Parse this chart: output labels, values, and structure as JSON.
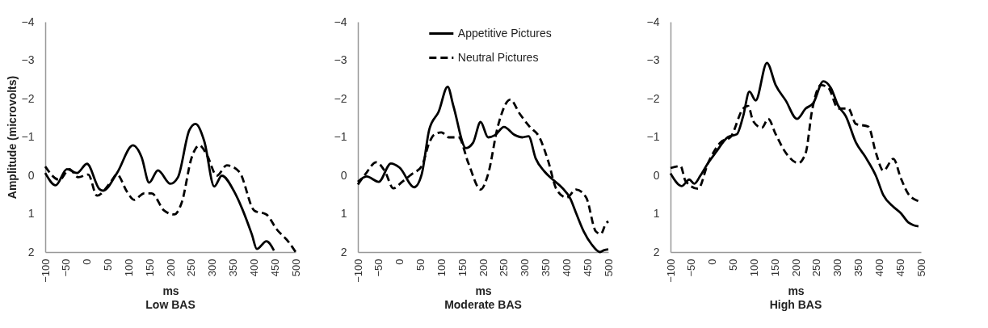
{
  "chart_data": [
    {
      "type": "line",
      "title": "Low BAS",
      "xlabel": "ms",
      "ylabel": "Amplitude (microvolts)",
      "xlim": [
        -100,
        500
      ],
      "xticks": [
        -100,
        -50,
        0,
        50,
        100,
        150,
        200,
        250,
        300,
        350,
        400,
        450,
        500
      ],
      "ylim": [
        2,
        -4
      ],
      "yticks": [
        -4,
        -3,
        -2,
        -1,
        0,
        1,
        2
      ],
      "grid": false,
      "legend": false,
      "series": [
        {
          "color": "#000000",
          "line_style": "solid",
          "x": [
            -100,
            -75,
            -48,
            -24,
            0,
            30,
            39,
            72,
            110,
            131,
            149,
            170,
            200,
            218,
            245,
            260,
            281,
            305,
            323,
            353,
            371,
            395,
            407,
            430,
            448
          ],
          "values": [
            -0.06,
            0.26,
            -0.16,
            -0.06,
            -0.3,
            0.36,
            0.4,
            -0.06,
            -0.78,
            -0.47,
            0.19,
            -0.13,
            0.22,
            0.05,
            -1.17,
            -1.34,
            -0.89,
            0.29,
            0.01,
            0.43,
            0.85,
            1.54,
            1.92,
            1.72,
            1.96
          ]
        },
        {
          "color": "#000000",
          "line_style": "dashed",
          "x": [
            -100,
            -66,
            -42,
            -21,
            3,
            24,
            54,
            72,
            96,
            113,
            137,
            155,
            185,
            209,
            227,
            251,
            269,
            287,
            311,
            335,
            365,
            401,
            430,
            454,
            484,
            500
          ],
          "values": [
            -0.23,
            0.12,
            -0.16,
            0.05,
            -0.02,
            0.53,
            0.22,
            -0.02,
            0.43,
            0.64,
            0.47,
            0.47,
            0.92,
            1.02,
            0.71,
            -0.47,
            -0.78,
            -0.54,
            0.01,
            -0.26,
            -0.09,
            0.92,
            1.02,
            1.4,
            1.75,
            2.0
          ]
        }
      ]
    },
    {
      "type": "line",
      "title": "Moderate BAS",
      "xlabel": "ms",
      "xlim": [
        -100,
        500
      ],
      "xticks": [
        -100,
        -50,
        0,
        50,
        100,
        150,
        200,
        250,
        300,
        350,
        400,
        450,
        500
      ],
      "ylim": [
        2,
        -4
      ],
      "yticks": [
        -4,
        -3,
        -2,
        -1,
        0,
        1,
        2
      ],
      "grid": false,
      "legend": "top",
      "series": [
        {
          "name": "Appetitive Pictures",
          "color": "#000000",
          "line_style": "solid",
          "x": [
            -100,
            -79,
            -50,
            -21,
            0,
            35,
            53,
            71,
            94,
            115,
            129,
            159,
            176,
            194,
            212,
            229,
            250,
            276,
            294,
            309,
            326,
            347,
            370,
            388,
            409,
            423,
            441,
            460,
            480,
            490,
            500
          ],
          "values": [
            0.17,
            0.03,
            0.17,
            -0.31,
            -0.2,
            0.31,
            -0.03,
            -1.19,
            -1.67,
            -2.31,
            -1.8,
            -0.71,
            -0.85,
            -1.39,
            -0.99,
            -1.05,
            -1.26,
            -1.05,
            -0.99,
            -1.02,
            -0.44,
            -0.1,
            0.14,
            0.31,
            0.61,
            0.99,
            1.46,
            1.8,
            2.0,
            1.95,
            1.93
          ]
        },
        {
          "name": "Neutral Pictures",
          "color": "#000000",
          "line_style": "dashed",
          "x": [
            -100,
            -82,
            -56,
            -35,
            -15,
            6,
            29,
            53,
            71,
            82,
            100,
            118,
            141,
            165,
            194,
            212,
            235,
            265,
            288,
            312,
            335,
            356,
            376,
            400,
            423,
            447,
            470,
            482,
            494,
            500
          ],
          "values": [
            0.24,
            -0.03,
            -0.34,
            -0.1,
            0.34,
            0.17,
            -0.03,
            -0.24,
            -0.85,
            -1.05,
            -1.12,
            -0.99,
            -0.99,
            -0.31,
            0.37,
            -0.03,
            -1.26,
            -1.97,
            -1.6,
            -1.26,
            -0.99,
            -0.37,
            0.37,
            0.58,
            0.37,
            0.58,
            1.46,
            1.53,
            1.26,
            1.2
          ]
        }
      ]
    },
    {
      "type": "line",
      "title": "High BAS",
      "xlabel": "ms",
      "xlim": [
        -100,
        500
      ],
      "xticks": [
        -100,
        -50,
        0,
        50,
        100,
        150,
        200,
        250,
        300,
        350,
        400,
        450,
        500
      ],
      "ylim": [
        2,
        -4
      ],
      "yticks": [
        -4,
        -3,
        -2,
        -1,
        0,
        1,
        2
      ],
      "grid": false,
      "legend": false,
      "series": [
        {
          "color": "#000000",
          "line_style": "solid",
          "x": [
            -100,
            -73,
            -55,
            -43,
            -28,
            -10,
            8,
            38,
            59,
            74,
            89,
            104,
            131,
            152,
            176,
            203,
            224,
            242,
            266,
            284,
            302,
            320,
            344,
            368,
            392,
            410,
            434,
            452,
            470,
            482,
            494
          ],
          "values": [
            -0.05,
            0.28,
            0.11,
            0.22,
            0,
            -0.32,
            -0.59,
            -1.0,
            -1.07,
            -1.54,
            -2.18,
            -1.95,
            -2.93,
            -2.35,
            -1.95,
            -1.47,
            -1.74,
            -1.88,
            -2.45,
            -2.28,
            -1.81,
            -1.54,
            -0.86,
            -0.46,
            0.01,
            0.52,
            0.82,
            0.99,
            1.23,
            1.3,
            1.33
          ]
        },
        {
          "color": "#000000",
          "line_style": "dashed",
          "x": [
            -100,
            -76,
            -64,
            -34,
            -10,
            20,
            44,
            74,
            86,
            98,
            119,
            134,
            152,
            176,
            206,
            224,
            239,
            260,
            278,
            302,
            326,
            344,
            374,
            392,
            410,
            434,
            452,
            470,
            491,
            500
          ],
          "values": [
            -0.19,
            -0.24,
            0.15,
            0.35,
            -0.32,
            -0.86,
            -1.0,
            -1.74,
            -1.81,
            -1.41,
            -1.24,
            -1.47,
            -1.07,
            -0.59,
            -0.32,
            -0.59,
            -1.68,
            -2.35,
            -2.28,
            -1.74,
            -1.74,
            -1.34,
            -1.27,
            -0.59,
            -0.12,
            -0.43,
            0.08,
            0.49,
            0.66,
            0.7
          ]
        }
      ]
    }
  ]
}
